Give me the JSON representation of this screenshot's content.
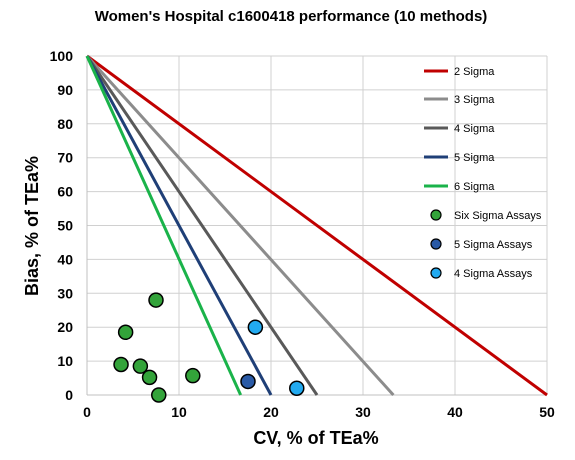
{
  "chart_data": {
    "type": "scatter",
    "title": "Women's Hospital c1600418 performance (10 methods)",
    "xlabel": "CV, % of TEa%",
    "ylabel": "Bias, % of TEa%",
    "xlim": [
      0,
      50
    ],
    "ylim": [
      0,
      100
    ],
    "xticks": [
      0,
      10,
      20,
      30,
      40,
      50
    ],
    "yticks": [
      0,
      10,
      20,
      30,
      40,
      50,
      60,
      70,
      80,
      90,
      100
    ],
    "grid": true,
    "legend_position": "right",
    "lines": [
      {
        "name": "2 Sigma",
        "color": "#c00000",
        "points": [
          [
            0,
            100
          ],
          [
            50,
            0
          ]
        ]
      },
      {
        "name": "3 Sigma",
        "color": "#8c8c8c",
        "points": [
          [
            0,
            100
          ],
          [
            33.3,
            0
          ]
        ]
      },
      {
        "name": "4 Sigma",
        "color": "#595959",
        "points": [
          [
            0,
            100
          ],
          [
            25,
            0
          ]
        ]
      },
      {
        "name": "5 Sigma",
        "color": "#1f3f77",
        "points": [
          [
            0,
            100
          ],
          [
            20,
            0
          ]
        ]
      },
      {
        "name": "6 Sigma",
        "color": "#1ab34a",
        "points": [
          [
            0,
            100
          ],
          [
            16.7,
            0
          ]
        ]
      }
    ],
    "series": [
      {
        "name": "Six Sigma Assays",
        "color": "#33a33a",
        "points": [
          [
            7.5,
            28
          ],
          [
            4.2,
            18.5
          ],
          [
            3.7,
            9
          ],
          [
            5.8,
            8.5
          ],
          [
            6.8,
            5.2
          ],
          [
            11.5,
            5.7
          ],
          [
            7.8,
            0
          ]
        ]
      },
      {
        "name": "5 Sigma Assays",
        "color": "#2a5aa6",
        "points": [
          [
            17.5,
            4
          ]
        ]
      },
      {
        "name": "4 Sigma Assays",
        "color": "#22aaf0",
        "points": [
          [
            18.3,
            20
          ],
          [
            22.8,
            2
          ]
        ]
      }
    ]
  }
}
